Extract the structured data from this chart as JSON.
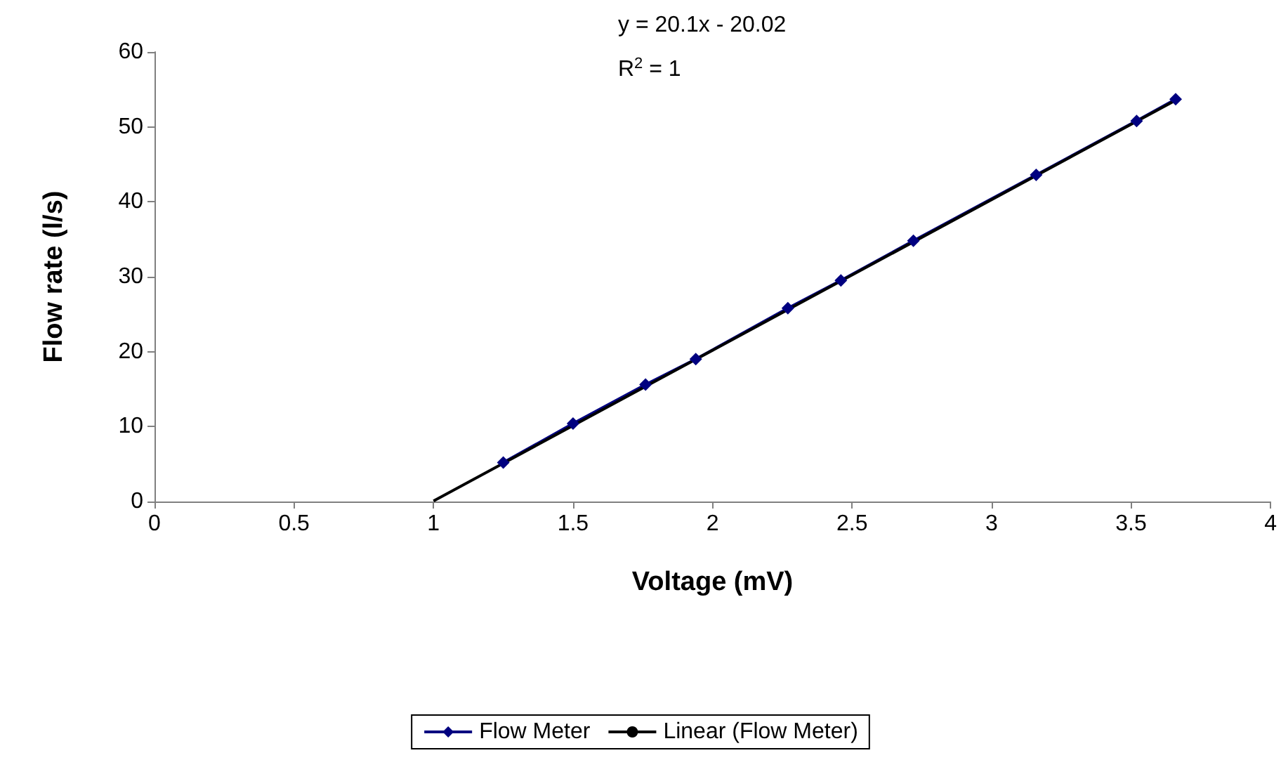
{
  "chart_data": {
    "type": "line",
    "xlabel": "Voltage (mV)",
    "ylabel": "Flow rate (l/s)",
    "annotations": [
      "y = 20.1x - 20.02",
      "R$^{2}$ = 1"
    ],
    "x": [
      1.25,
      1.5,
      1.76,
      1.94,
      2.27,
      2.46,
      2.72,
      3.16,
      3.52,
      3.66
    ],
    "series": [
      {
        "name": "Flow Meter",
        "color": "#000080",
        "marker": "diamond",
        "values": [
          5.2,
          10.4,
          15.6,
          19,
          25.8,
          29.5,
          34.8,
          43.6,
          50.8,
          53.7
        ]
      },
      {
        "name": "Linear (Flow Meter)",
        "color": "#000000",
        "marker": "none",
        "x": [
          1,
          3.66
        ],
        "values": [
          0.08,
          53.55
        ]
      }
    ],
    "xlim": [
      0,
      4
    ],
    "xticks": [
      0,
      0.5,
      1,
      1.5,
      2,
      2.5,
      3,
      3.5,
      4
    ],
    "ylim": [
      0,
      60
    ],
    "yticks": [
      0,
      10,
      20,
      30,
      40,
      50,
      60
    ],
    "grid": false,
    "legend": "bottom"
  }
}
